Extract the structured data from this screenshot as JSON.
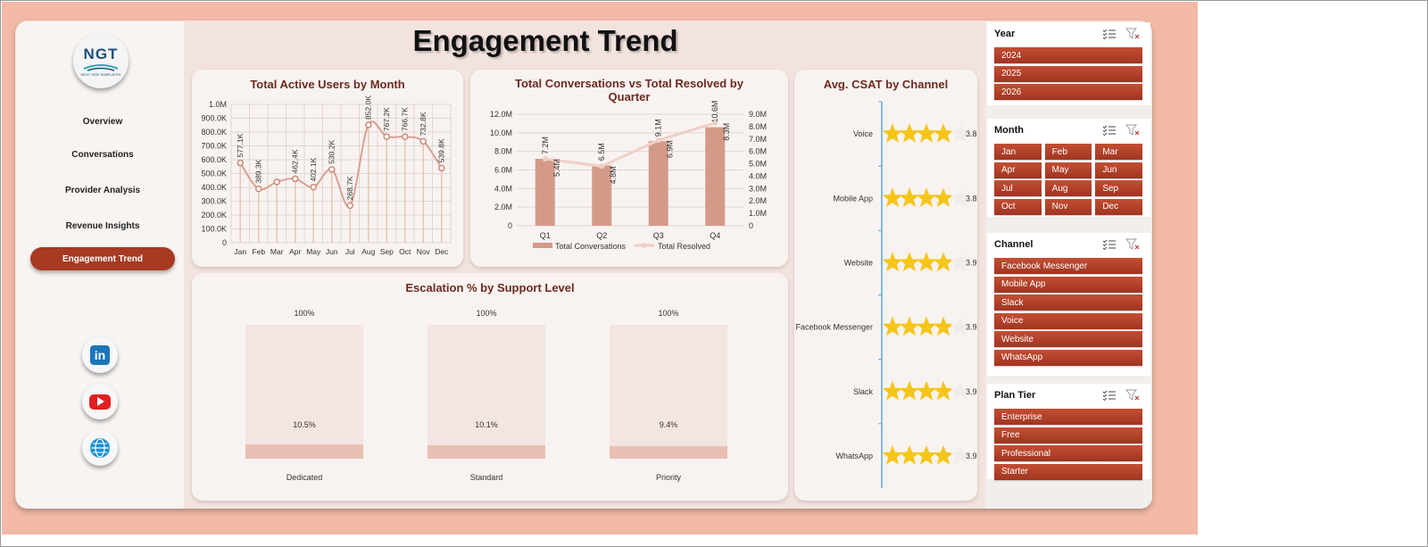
{
  "title": "Engagement Trend",
  "logo": {
    "text": "NGT",
    "subtitle": "NEXT GEN TEMPLATES"
  },
  "nav": [
    {
      "label": "Overview",
      "active": false
    },
    {
      "label": "Conversations",
      "active": false
    },
    {
      "label": "Provider Analysis",
      "active": false
    },
    {
      "label": "Revenue Insights",
      "active": false
    },
    {
      "label": "Engagement Trend",
      "active": true
    }
  ],
  "social": [
    "linkedin-icon",
    "youtube-icon",
    "globe-icon"
  ],
  "colors": {
    "accent": "#a63a22",
    "bar": "#d39a89",
    "line": "#d9a190",
    "star": "#f5c518",
    "canvas": "#f2b9a6"
  },
  "chart_data": [
    {
      "id": "active_users",
      "type": "line",
      "title": "Total Active Users by Month",
      "categories": [
        "Jan",
        "Feb",
        "Mar",
        "Apr",
        "May",
        "Jun",
        "Jul",
        "Aug",
        "Sep",
        "Oct",
        "Nov",
        "Dec"
      ],
      "values": [
        577100,
        389300,
        440000,
        462400,
        402100,
        530200,
        268700,
        852000,
        767200,
        766700,
        732800,
        539800
      ],
      "data_labels": [
        "577.1K",
        "389.3K",
        "",
        "462.4K",
        "402.1K",
        "530.2K",
        "268.7K",
        "852.0K",
        "767.2K",
        "766.7K",
        "732.8K",
        "539.8K"
      ],
      "ylim": [
        0,
        1000000
      ],
      "yticks": [
        "0",
        "100.0K",
        "200.0K",
        "300.0K",
        "400.0K",
        "500.0K",
        "600.0K",
        "700.0K",
        "800.0K",
        "900.0K",
        "1.0M"
      ],
      "grid": true
    },
    {
      "id": "conversations",
      "type": "bar",
      "title": "Total Conversations vs Total Resolved by Quarter",
      "categories": [
        "Q1",
        "Q2",
        "Q3",
        "Q4"
      ],
      "series": [
        {
          "name": "Total Conversations",
          "type": "bar",
          "axis": "left",
          "values": [
            7200000,
            6500000,
            9100000,
            10600000
          ],
          "labels": [
            "7.2M",
            "6.5M",
            "9.1M",
            "10.6M"
          ]
        },
        {
          "name": "Total Resolved",
          "type": "line",
          "axis": "right",
          "values": [
            5400000,
            4800000,
            6900000,
            8300000
          ],
          "labels": [
            "5.4M",
            "4.8M",
            "6.9M",
            "8.3M"
          ]
        }
      ],
      "ylim_left": [
        0,
        12000000
      ],
      "ylim_right": [
        0,
        9000000
      ],
      "yticks_left": [
        "0",
        "2.0M",
        "4.0M",
        "6.0M",
        "8.0M",
        "10.0M",
        "12.0M"
      ],
      "yticks_right": [
        "0",
        "1.0M",
        "2.0M",
        "3.0M",
        "4.0M",
        "5.0M",
        "6.0M",
        "7.0M",
        "8.0M",
        "9.0M"
      ],
      "legend": "bottom"
    },
    {
      "id": "csat",
      "type": "bar",
      "title": "Avg. CSAT by Channel",
      "categories": [
        "Voice",
        "Mobile App",
        "Website",
        "Facebook Messenger",
        "Slack",
        "WhatsApp"
      ],
      "values": [
        3.8,
        3.8,
        3.9,
        3.9,
        3.9,
        3.9
      ],
      "labels": [
        "3.8",
        "3.8",
        "3.9",
        "3.9",
        "3.9",
        "3.9"
      ],
      "max": 5,
      "marker": "star"
    },
    {
      "id": "escalation",
      "type": "bar",
      "title": "Escalation % by Support Level",
      "categories": [
        "Dedicated",
        "Standard",
        "Priority"
      ],
      "values": [
        10.5,
        10.1,
        9.4
      ],
      "labels": [
        "10.5%",
        "10.1%",
        "9.4%"
      ],
      "totals": [
        "100%",
        "100%",
        "100%"
      ],
      "ylim": [
        0,
        100
      ]
    }
  ],
  "slicers": [
    {
      "title": "Year",
      "columns": 1,
      "items": [
        "2024",
        "2025",
        "2026"
      ]
    },
    {
      "title": "Month",
      "columns": 3,
      "items": [
        "Jan",
        "Feb",
        "Mar",
        "Apr",
        "May",
        "Jun",
        "Jul",
        "Aug",
        "Sep",
        "Oct",
        "Nov",
        "Dec"
      ]
    },
    {
      "title": "Channel",
      "columns": 1,
      "items": [
        "Facebook Messenger",
        "Mobile App",
        "Slack",
        "Voice",
        "Website",
        "WhatsApp"
      ]
    },
    {
      "title": "Plan Tier",
      "columns": 1,
      "items": [
        "Enterprise",
        "Free",
        "Professional",
        "Starter"
      ]
    }
  ]
}
